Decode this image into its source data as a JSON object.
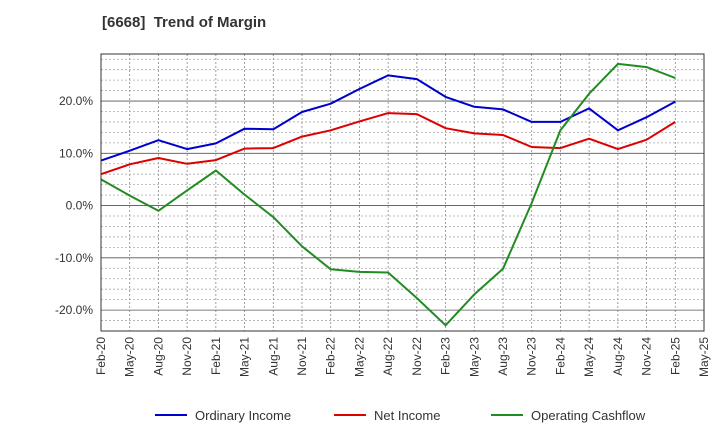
{
  "chart_data": {
    "type": "line",
    "title": "[6668]  Trend of Margin",
    "xlabel": "",
    "ylabel": "",
    "x": [
      "Feb-20",
      "May-20",
      "Aug-20",
      "Nov-20",
      "Feb-21",
      "May-21",
      "Aug-21",
      "Nov-21",
      "Feb-22",
      "May-22",
      "Aug-22",
      "Nov-22",
      "Feb-23",
      "May-23",
      "Aug-23",
      "Nov-23",
      "Feb-24",
      "May-24",
      "Aug-24",
      "Nov-24",
      "Feb-25",
      "May-25"
    ],
    "ylim": [
      -24,
      29
    ],
    "yticks": [
      20,
      10,
      0,
      -10,
      -20
    ],
    "ytick_labels": [
      "20.0%",
      "10.0%",
      "0.0%",
      "-10.0%",
      "-20.0%"
    ],
    "grid": true,
    "legend_position": "bottom",
    "series": [
      {
        "name": "Ordinary Income",
        "color": "#0000cc",
        "values": [
          8.6,
          10.5,
          12.5,
          10.8,
          11.9,
          14.7,
          14.6,
          17.9,
          19.5,
          22.3,
          24.9,
          24.2,
          20.8,
          18.9,
          18.4,
          16.0,
          16.0,
          18.6,
          14.4,
          16.9,
          19.9,
          null
        ]
      },
      {
        "name": "Net Income",
        "color": "#dd0000",
        "values": [
          6.0,
          7.9,
          9.1,
          8.0,
          8.7,
          10.9,
          11.0,
          13.2,
          14.4,
          16.1,
          17.7,
          17.5,
          14.8,
          13.8,
          13.5,
          11.2,
          11.0,
          12.8,
          10.8,
          12.6,
          16.0,
          null
        ]
      },
      {
        "name": "Operating Cashflow",
        "color": "#228b22",
        "values": [
          5.0,
          1.9,
          -1.0,
          2.9,
          6.7,
          2.1,
          -2.2,
          -7.8,
          -12.2,
          -12.7,
          -12.8,
          -17.7,
          -22.9,
          -17.0,
          -12.1,
          0.5,
          14.4,
          21.4,
          27.1,
          26.5,
          24.4,
          null
        ]
      }
    ]
  }
}
